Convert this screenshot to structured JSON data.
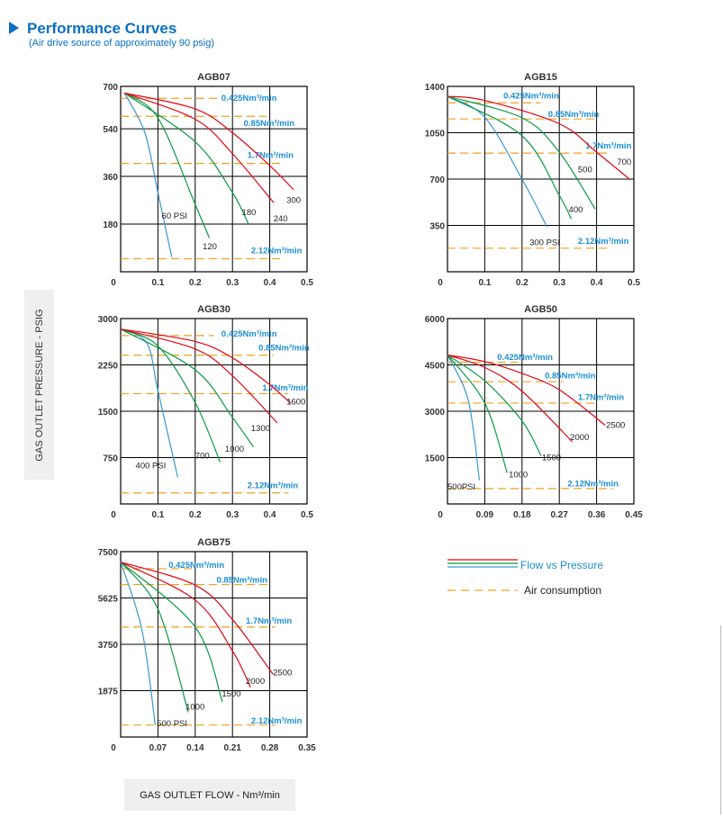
{
  "header": {
    "title": "Performance Curves",
    "subtitle": "(Air drive source of approximately 90 psig)",
    "icon": "triangle-right-icon"
  },
  "axes": {
    "ylabel": "GAS OUTLET PRESSURE - PSIG",
    "xlabel": "GAS OUTLET FLOW - Nm³/min"
  },
  "legend": {
    "flow_label": "Flow vs Pressure",
    "air_label": "Air consumption",
    "placement": "bottom-right"
  },
  "colors": {
    "red": "#e30613",
    "green": "#0a9a44",
    "blue": "#3a96d1",
    "air": "#f0a020",
    "air_text": "#1b8fd6",
    "grid": "#000000"
  },
  "chart_data": [
    {
      "type": "line",
      "title": "AGB07",
      "xlim": [
        0,
        0.5
      ],
      "ylim": [
        0,
        700
      ],
      "xticks": [
        "0",
        "0.1",
        "0.2",
        "0.3",
        "0.4",
        "0.5"
      ],
      "yticks": [
        {
          "v": 180,
          "t": "180"
        },
        {
          "v": 360,
          "t": "360"
        },
        {
          "v": 540,
          "t": "540"
        },
        {
          "v": 700,
          "t": "700"
        }
      ],
      "series": [
        {
          "name": "60 PSI",
          "color": "blue",
          "points": [
            [
              0.01,
              675
            ],
            [
              0.065,
              525
            ],
            [
              0.1,
              299
            ],
            [
              0.137,
              56
            ]
          ],
          "label_at": [
            0.11,
            210
          ]
        },
        {
          "name": "120",
          "color": "green",
          "points": [
            [
              0.01,
              675
            ],
            [
              0.1,
              581
            ],
            [
              0.2,
              254
            ],
            [
              0.238,
              128
            ]
          ],
          "label_at": [
            0.22,
            95
          ]
        },
        {
          "name": "180",
          "color": "green",
          "points": [
            [
              0.01,
              675
            ],
            [
              0.2,
              491
            ],
            [
              0.3,
              299
            ],
            [
              0.344,
              177
            ]
          ],
          "label_at": [
            0.325,
            225
          ]
        },
        {
          "name": "240",
          "color": "red",
          "points": [
            [
              0.01,
              675
            ],
            [
              0.2,
              576
            ],
            [
              0.3,
              446
            ],
            [
              0.411,
              260
            ]
          ],
          "label_at": [
            0.41,
            200
          ]
        },
        {
          "name": "300",
          "color": "red",
          "points": [
            [
              0.01,
              675
            ],
            [
              0.2,
              615
            ],
            [
              0.3,
              525
            ],
            [
              0.4,
              401
            ],
            [
              0.464,
              310
            ]
          ],
          "label_at": [
            0.445,
            270
          ]
        }
      ],
      "air": [
        {
          "label": "0.425Nm³/min",
          "y": 655,
          "x_end": 0.27,
          "label_at": [
            0.27,
            655
          ]
        },
        {
          "label": "0.85Nm³/min",
          "y": 587,
          "x_end": 0.39,
          "label_at": [
            0.33,
            560
          ]
        },
        {
          "label": "1.7Nm³/min",
          "y": 409,
          "x_end": 0.44,
          "label_at": [
            0.34,
            440
          ]
        },
        {
          "label": "2.12Nm³/min",
          "y": 49,
          "x_end": 0.43,
          "label_at": [
            0.35,
            80
          ]
        }
      ]
    },
    {
      "type": "line",
      "title": "AGB15",
      "xlim": [
        0,
        0.5
      ],
      "ylim": [
        0,
        1400
      ],
      "xticks": [
        "0",
        "0.1",
        "0.2",
        "0.3",
        "0.4",
        "0.5"
      ],
      "yticks": [
        {
          "v": 350,
          "t": "350"
        },
        {
          "v": 700,
          "t": "700"
        },
        {
          "v": 1050,
          "t": "1050"
        },
        {
          "v": 1400,
          "t": "1400"
        }
      ],
      "series": [
        {
          "name": "300 PSI",
          "color": "blue",
          "points": [
            [
              0,
              1325
            ],
            [
              0.1,
              1167
            ],
            [
              0.2,
              700
            ],
            [
              0.267,
              339
            ]
          ],
          "label_at": [
            0.22,
            220
          ]
        },
        {
          "name": "400",
          "color": "green",
          "points": [
            [
              0,
              1325
            ],
            [
              0.2,
              1027
            ],
            [
              0.3,
              576
            ],
            [
              0.332,
              400
            ]
          ],
          "label_at": [
            0.325,
            470
          ]
        },
        {
          "name": "500",
          "color": "green",
          "points": [
            [
              0,
              1325
            ],
            [
              0.2,
              1163
            ],
            [
              0.3,
              903
            ],
            [
              0.396,
              474
            ]
          ],
          "label_at": [
            0.35,
            770
          ]
        },
        {
          "name": "700",
          "color": "red",
          "points": [
            [
              0,
              1325
            ],
            [
              0.1,
              1294
            ],
            [
              0.3,
              1118
            ],
            [
              0.4,
              903
            ],
            [
              0.49,
              695
            ]
          ],
          "label_at": [
            0.455,
            830
          ]
        }
      ],
      "air": [
        {
          "label": "0.425Nm³/min",
          "y": 1276,
          "x_end": 0.25,
          "label_at": [
            0.15,
            1330
          ]
        },
        {
          "label": "0.85Nm³/min",
          "y": 1154,
          "x_end": 0.4,
          "label_at": [
            0.27,
            1190
          ]
        },
        {
          "label": "1.7Nm³/min",
          "y": 896,
          "x_end": 0.43,
          "label_at": [
            0.37,
            950
          ]
        },
        {
          "label": "2.12Nm³/min",
          "y": 178,
          "x_end": 0.44,
          "label_at": [
            0.35,
            230
          ]
        }
      ]
    },
    {
      "type": "line",
      "title": "AGB30",
      "xlim": [
        0,
        0.5
      ],
      "ylim": [
        0,
        3000
      ],
      "xticks": [
        "0",
        "0.1",
        "0.2",
        "0.3",
        "0.4",
        "0.5"
      ],
      "yticks": [
        {
          "v": 750,
          "t": "750"
        },
        {
          "v": 1500,
          "t": "1500"
        },
        {
          "v": 2250,
          "t": "2250"
        },
        {
          "v": 3000,
          "t": "3000"
        }
      ],
      "series": [
        {
          "name": "400 PSI",
          "color": "blue",
          "points": [
            [
              0,
              2830
            ],
            [
              0.07,
              2605
            ],
            [
              0.1,
              1833
            ],
            [
              0.153,
              434
            ]
          ],
          "label_at": [
            0.04,
            620
          ]
        },
        {
          "name": "700",
          "color": "green",
          "points": [
            [
              0,
              2830
            ],
            [
              0.1,
              2557
            ],
            [
              0.2,
              1640
            ],
            [
              0.267,
              675
            ]
          ],
          "label_at": [
            0.2,
            780
          ]
        },
        {
          "name": "1000",
          "color": "green",
          "points": [
            [
              0,
              2830
            ],
            [
              0.2,
              2170
            ],
            [
              0.3,
              1399
            ],
            [
              0.356,
              926
            ]
          ],
          "label_at": [
            0.28,
            890
          ]
        },
        {
          "name": "1300",
          "color": "red",
          "points": [
            [
              0,
              2830
            ],
            [
              0.2,
              2508
            ],
            [
              0.3,
              2074
            ],
            [
              0.42,
              1312
            ]
          ],
          "label_at": [
            0.35,
            1220
          ]
        },
        {
          "name": "1600",
          "color": "red",
          "points": [
            [
              0,
              2830
            ],
            [
              0.2,
              2629
            ],
            [
              0.3,
              2364
            ],
            [
              0.4,
              1930
            ],
            [
              0.456,
              1630
            ]
          ],
          "label_at": [
            0.445,
            1650
          ]
        }
      ],
      "air": [
        {
          "label": "0.425Nm³/min",
          "y": 2725,
          "x_end": 0.25,
          "label_at": [
            0.27,
            2750
          ]
        },
        {
          "label": "0.85Nm³/min",
          "y": 2407,
          "x_end": 0.41,
          "label_at": [
            0.37,
            2530
          ]
        },
        {
          "label": "1.7Nm³/min",
          "y": 1785,
          "x_end": 0.45,
          "label_at": [
            0.38,
            1880
          ]
        },
        {
          "label": "2.12Nm³/min",
          "y": 178,
          "x_end": 0.45,
          "label_at": [
            0.34,
            300
          ]
        }
      ]
    },
    {
      "type": "line",
      "title": "AGB50",
      "xlim": [
        0,
        0.45
      ],
      "ylim": [
        0,
        6000
      ],
      "xticks": [
        "0",
        "0.09",
        "0.18",
        "0.27",
        "0.36",
        "0.45"
      ],
      "yticks": [
        {
          "v": 1500,
          "t": "1500"
        },
        {
          "v": 3000,
          "t": "3000"
        },
        {
          "v": 4500,
          "t": "4500"
        },
        {
          "v": 6000,
          "t": "6000"
        }
      ],
      "series": [
        {
          "name": "500PSI",
          "color": "blue",
          "points": [
            [
              0,
              4820
            ],
            [
              0.05,
              3360
            ],
            [
              0.077,
              768
            ]
          ],
          "label_at": [
            0.0,
            560
          ]
        },
        {
          "name": "1000",
          "color": "green",
          "points": [
            [
              0,
              4820
            ],
            [
              0.09,
              3264
            ],
            [
              0.144,
              1008
            ]
          ],
          "label_at": [
            0.148,
            950
          ]
        },
        {
          "name": "1500",
          "color": "green",
          "points": [
            [
              0,
              4820
            ],
            [
              0.09,
              3984
            ],
            [
              0.18,
              2688
            ],
            [
              0.226,
              1555
            ]
          ],
          "label_at": [
            0.228,
            1500
          ]
        },
        {
          "name": "2000",
          "color": "red",
          "points": [
            [
              0,
              4820
            ],
            [
              0.09,
              4416
            ],
            [
              0.18,
              3648
            ],
            [
              0.301,
              2016
            ]
          ],
          "label_at": [
            0.296,
            2150
          ]
        },
        {
          "name": "2500",
          "color": "red",
          "points": [
            [
              0,
              4820
            ],
            [
              0.09,
              4608
            ],
            [
              0.18,
              4224
            ],
            [
              0.27,
              3696
            ],
            [
              0.381,
              2544
            ]
          ],
          "label_at": [
            0.383,
            2550
          ]
        }
      ],
      "air": [
        {
          "label": "0.425Nm³/min",
          "y": 4589,
          "x_end": 0.17,
          "label_at": [
            0.12,
            4750
          ]
        },
        {
          "label": "0.85Nm³/min",
          "y": 3955,
          "x_end": 0.28,
          "label_at": [
            0.235,
            4150
          ]
        },
        {
          "label": "1.7Nm³/min",
          "y": 3264,
          "x_end": 0.36,
          "label_at": [
            0.315,
            3450
          ]
        },
        {
          "label": "2.12Nm³/min",
          "y": 499,
          "x_end": 0.4,
          "label_at": [
            0.29,
            650
          ]
        }
      ]
    },
    {
      "type": "line",
      "title": "AGB75",
      "xlim": [
        0,
        0.35
      ],
      "ylim": [
        0,
        7500
      ],
      "xticks": [
        "0",
        "0.07",
        "0.14",
        "0.21",
        "0.28",
        "0.35"
      ],
      "yticks": [
        {
          "v": 1875,
          "t": "1875"
        },
        {
          "v": 3750,
          "t": "3750"
        },
        {
          "v": 5625,
          "t": "5625"
        },
        {
          "v": 7500,
          "t": "7500"
        }
      ],
      "series": [
        {
          "name": "500 PSI",
          "color": "blue",
          "points": [
            [
              0,
              7080
            ],
            [
              0.04,
              4330
            ],
            [
              0.065,
              484
            ]
          ],
          "label_at": [
            0.068,
            540
          ]
        },
        {
          "name": "1000",
          "color": "green",
          "points": [
            [
              0,
              7080
            ],
            [
              0.07,
              5177
            ],
            [
              0.127,
              1004
            ]
          ],
          "label_at": [
            0.122,
            1220
          ]
        },
        {
          "name": "1500",
          "color": "green",
          "points": [
            [
              0,
              7080
            ],
            [
              0.14,
              4451
            ],
            [
              0.191,
              1427
            ]
          ],
          "label_at": [
            0.19,
            1750
          ]
        },
        {
          "name": "2000",
          "color": "red",
          "points": [
            [
              0,
              7080
            ],
            [
              0.14,
              5540
            ],
            [
              0.21,
              3484
            ],
            [
              0.244,
              2008
            ]
          ],
          "label_at": [
            0.235,
            2250
          ]
        },
        {
          "name": "2500",
          "color": "red",
          "points": [
            [
              0,
              7080
            ],
            [
              0.14,
              6145
            ],
            [
              0.21,
              4754
            ],
            [
              0.286,
              2540
            ]
          ],
          "label_at": [
            0.286,
            2600
          ]
        }
      ],
      "air": [
        {
          "label": "0.425Nm³/min",
          "y": 6810,
          "x_end": 0.14,
          "label_at": [
            0.09,
            6950
          ]
        },
        {
          "label": "0.85Nm³/min",
          "y": 6169,
          "x_end": 0.28,
          "label_at": [
            0.18,
            6350
          ]
        },
        {
          "label": "1.7Nm³/min",
          "y": 4451,
          "x_end": 0.29,
          "label_at": [
            0.235,
            4700
          ]
        },
        {
          "label": "2.12Nm³/min",
          "y": 484,
          "x_end": 0.29,
          "label_at": [
            0.245,
            650
          ]
        }
      ]
    }
  ]
}
